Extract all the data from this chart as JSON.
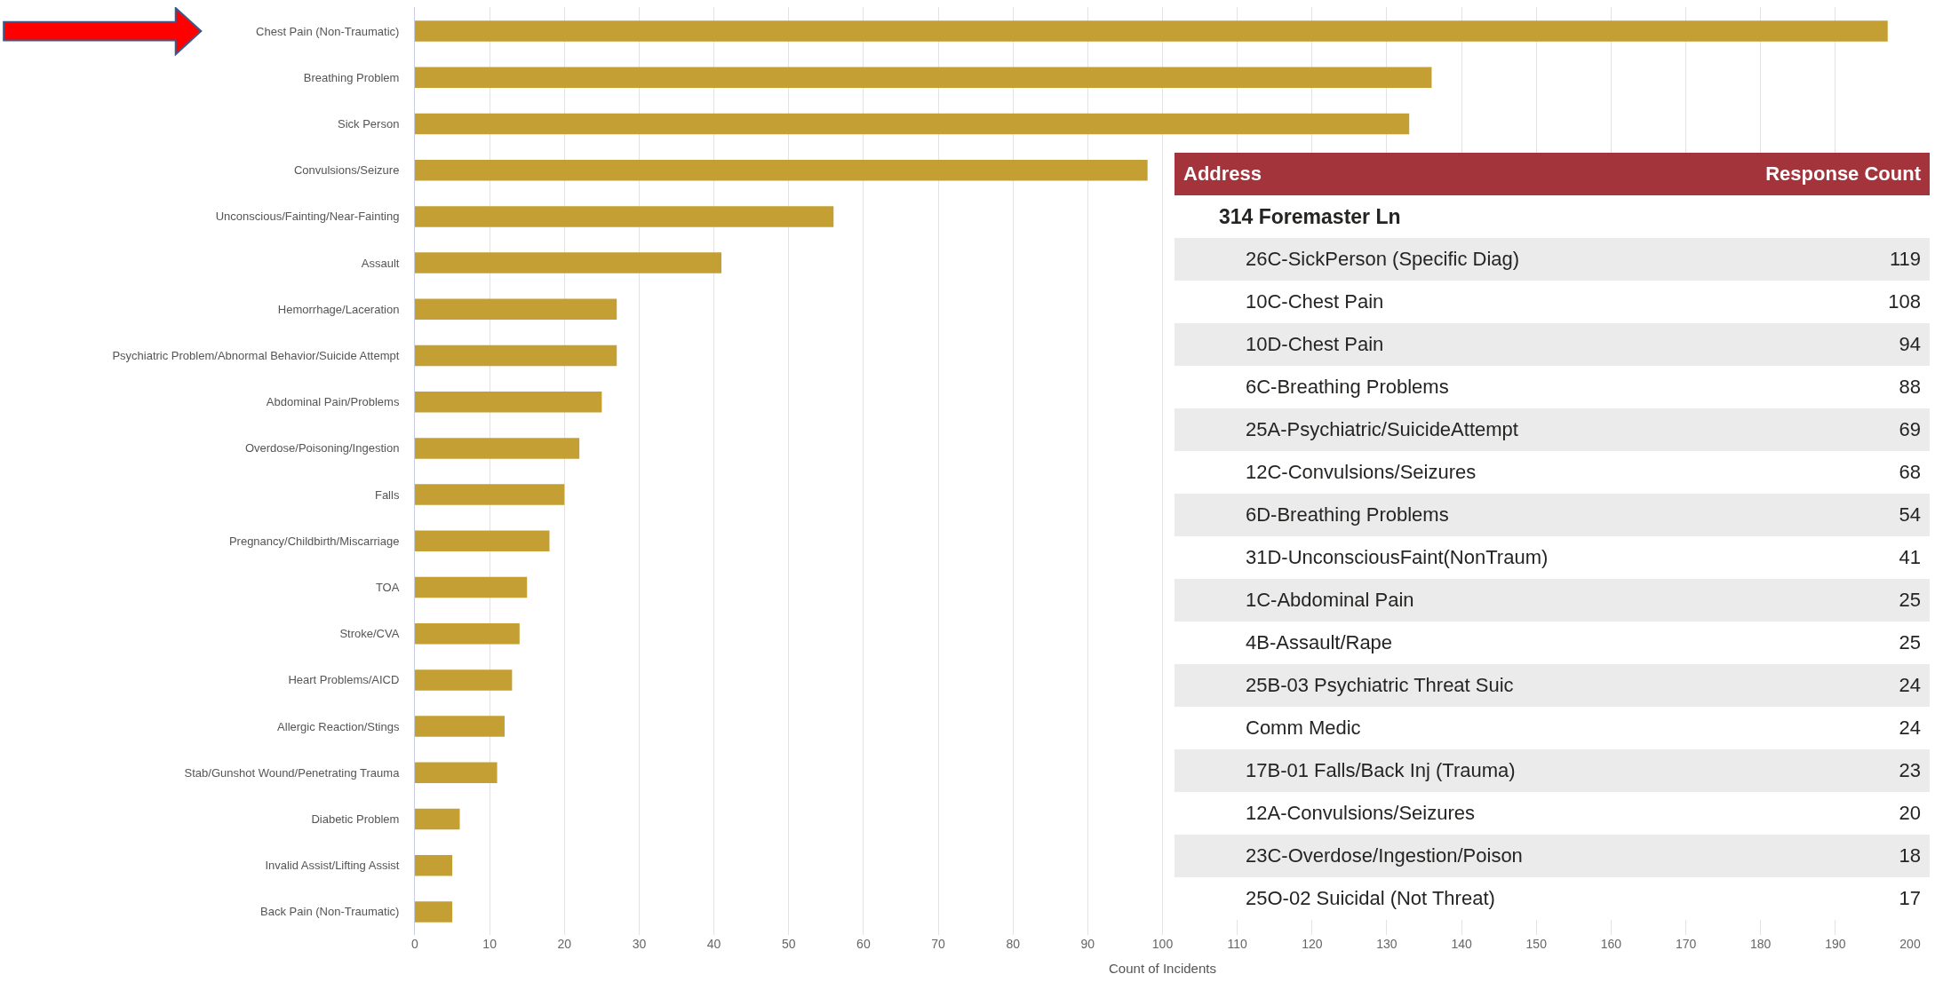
{
  "chart_data": [
    {
      "type": "bar",
      "orientation": "horizontal",
      "xlabel": "Count of Incidents",
      "color": "#c49f33",
      "grid": "x",
      "xlim": [
        0,
        200
      ],
      "xticks": [
        0,
        10,
        20,
        30,
        40,
        50,
        60,
        70,
        80,
        90,
        100,
        110,
        120,
        130,
        140,
        150,
        160,
        170,
        180,
        190,
        200
      ],
      "categories": [
        "Chest Pain (Non-Traumatic)",
        "Breathing Problem",
        "Sick Person",
        "Convulsions/Seizure",
        "Unconscious/Fainting/Near-Fainting",
        "Assault",
        "Hemorrhage/Laceration",
        "Psychiatric Problem/Abnormal Behavior/Suicide Attempt",
        "Abdominal Pain/Problems",
        "Overdose/Poisoning/Ingestion",
        "Falls",
        "Pregnancy/Childbirth/Miscarriage",
        "TOA",
        "Stroke/CVA",
        "Heart Problems/AICD",
        "Allergic Reaction/Stings",
        "Stab/Gunshot Wound/Penetrating Trauma",
        "Diabetic Problem",
        "Invalid Assist/Lifting Assist",
        "Back Pain (Non-Traumatic)"
      ],
      "values": [
        197,
        136,
        133,
        98,
        56,
        41,
        27,
        27,
        25,
        22,
        20,
        18,
        15,
        14,
        13,
        12,
        11,
        6,
        5,
        5
      ]
    },
    {
      "type": "other",
      "xlabel": "Address",
      "ylabel": "Response Count",
      "title": "314 Foremaster Ln",
      "data_labels": true,
      "categories": [
        "26C-SickPerson (Specific Diag)",
        "10C-Chest Pain",
        "10D-Chest Pain",
        "6C-Breathing Problems",
        "25A-Psychiatric/SuicideAttempt",
        "12C-Convulsions/Seizures",
        "6D-Breathing Problems",
        "31D-UnconsciousFaint(NonTraum)",
        "1C-Abdominal Pain",
        "4B-Assault/Rape",
        "25B-03 Psychiatric Threat Suic",
        "Comm Medic",
        "17B-01 Falls/Back Inj (Trauma)",
        "12A-Convulsions/Seizures",
        "23C-Overdose/Ingestion/Poison",
        "25O-02 Suicidal (Not Threat)"
      ],
      "values": [
        119,
        108,
        94,
        88,
        69,
        68,
        54,
        41,
        25,
        25,
        24,
        24,
        23,
        20,
        18,
        17
      ]
    }
  ]
}
